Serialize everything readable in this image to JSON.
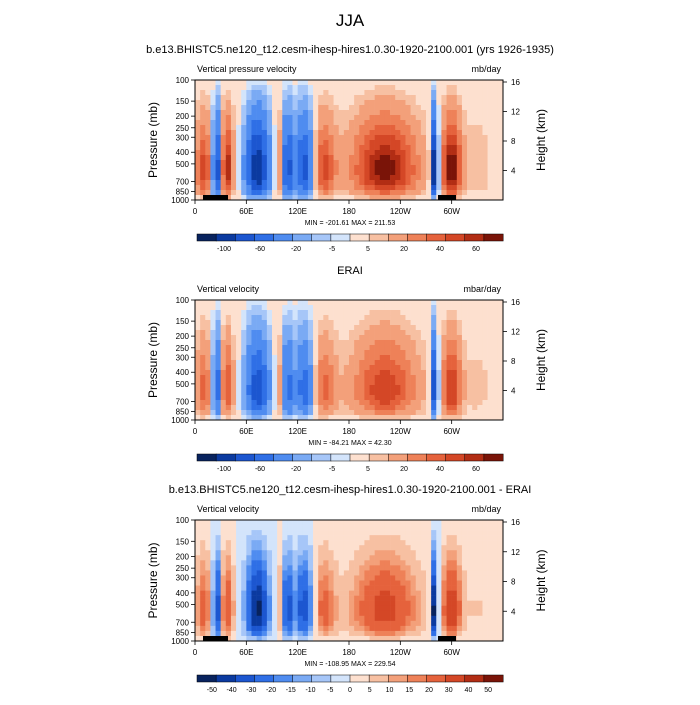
{
  "figure": {
    "main_title": "JJA",
    "pressure_label": "Pressure (mb)",
    "height_label": "Height (km)"
  },
  "chart_data": [
    {
      "type": "heatmap",
      "title": "b.e13.BHISTC5.ne120_t12.cesm-ihesp-hires1.0.30-1920-2100.001 (yrs 1926-1935)",
      "left_label": "Vertical pressure velocity",
      "units": "mb/day",
      "x_ticks": [
        "0",
        "60E",
        "120E",
        "180",
        "120W",
        "60W"
      ],
      "y_ticks": [
        "100",
        "150",
        "200",
        "250",
        "300",
        "400",
        "500",
        "700",
        "850",
        "1000"
      ],
      "height_ticks": [
        "4",
        "8",
        "12",
        "16"
      ],
      "stats": "MIN = -201.61  MAX = 211.53",
      "colorbar_labels": [
        "-100",
        "-60",
        "-20",
        "-5",
        "5",
        "20",
        "40",
        "60"
      ],
      "colorbar_levels": [
        -100,
        -80,
        -60,
        -40,
        -20,
        -10,
        -5,
        -2,
        2,
        5,
        10,
        20,
        30,
        40,
        50,
        60
      ],
      "scale": 75,
      "terrain": true
    },
    {
      "type": "heatmap",
      "title": "ERAI",
      "left_label": "Vertical velocity",
      "units": "mbar/day",
      "x_ticks": [
        "0",
        "60E",
        "120E",
        "180",
        "120W",
        "60W"
      ],
      "y_ticks": [
        "100",
        "150",
        "200",
        "250",
        "300",
        "400",
        "500",
        "700",
        "850",
        "1000"
      ],
      "height_ticks": [
        "4",
        "8",
        "12",
        "16"
      ],
      "stats": "MIN = -84.21  MAX =  42.30",
      "colorbar_labels": [
        "-100",
        "-60",
        "-20",
        "-5",
        "5",
        "20",
        "40",
        "60"
      ],
      "colorbar_levels": [
        -100,
        -80,
        -60,
        -40,
        -20,
        -10,
        -5,
        -2,
        2,
        5,
        10,
        20,
        30,
        40,
        50,
        60
      ],
      "scale": 55,
      "terrain": false
    },
    {
      "type": "heatmap",
      "title": "b.e13.BHISTC5.ne120_t12.cesm-ihesp-hires1.0.30-1920-2100.001 - ERAI",
      "left_label": "Vertical velocity",
      "units": "mb/day",
      "x_ticks": [
        "0",
        "60E",
        "120E",
        "180",
        "120W",
        "60W"
      ],
      "y_ticks": [
        "100",
        "150",
        "200",
        "250",
        "300",
        "400",
        "500",
        "700",
        "850",
        "1000"
      ],
      "height_ticks": [
        "4",
        "8",
        "12",
        "16"
      ],
      "stats": "MIN = -108.95  MAX = 229.54",
      "colorbar_labels": [
        "-50",
        "-40",
        "-30",
        "-20",
        "-15",
        "-10",
        "-5",
        "0",
        "5",
        "10",
        "15",
        "20",
        "30",
        "40",
        "50"
      ],
      "colorbar_levels": [
        -50,
        -40,
        -30,
        -20,
        -15,
        -10,
        -5,
        0,
        5,
        10,
        15,
        20,
        30,
        40,
        50
      ],
      "scale": 40,
      "terrain": true
    }
  ],
  "colors": {
    "palette": [
      "#08235e",
      "#0b3aa0",
      "#1c56d0",
      "#2f6fe6",
      "#4f8cf0",
      "#7aaaf4",
      "#a6c6f8",
      "#d3e4fb",
      "#fde0cf",
      "#f7c0a2",
      "#f3a07a",
      "#ee8158",
      "#e5623c",
      "#d44726",
      "#b22d14",
      "#7a1408"
    ],
    "terrain": "#000000"
  }
}
